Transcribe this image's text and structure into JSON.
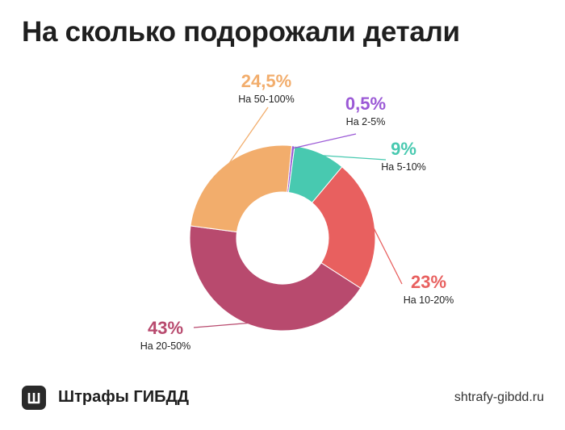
{
  "title": "На сколько подорожали детали",
  "chart_data": {
    "type": "pie",
    "variant": "donut",
    "slices": [
      {
        "label": "На 2-5%",
        "value": 0.5,
        "value_label": "0,5%",
        "color": "#9b59d6"
      },
      {
        "label": "На 5-10%",
        "value": 9,
        "value_label": "9%",
        "color": "#48c9b0"
      },
      {
        "label": "На 10-20%",
        "value": 23,
        "value_label": "23%",
        "color": "#e8605f"
      },
      {
        "label": "На 20-50%",
        "value": 43,
        "value_label": "43%",
        "color": "#b84a6e"
      },
      {
        "label": "На 50-100%",
        "value": 24.5,
        "value_label": "24,5%",
        "color": "#f2ad6c"
      }
    ]
  },
  "footer": {
    "brand": "Штрафы ГИБДД",
    "logo_letter": "Ш",
    "site": "shtrafy-gibdd.ru"
  }
}
